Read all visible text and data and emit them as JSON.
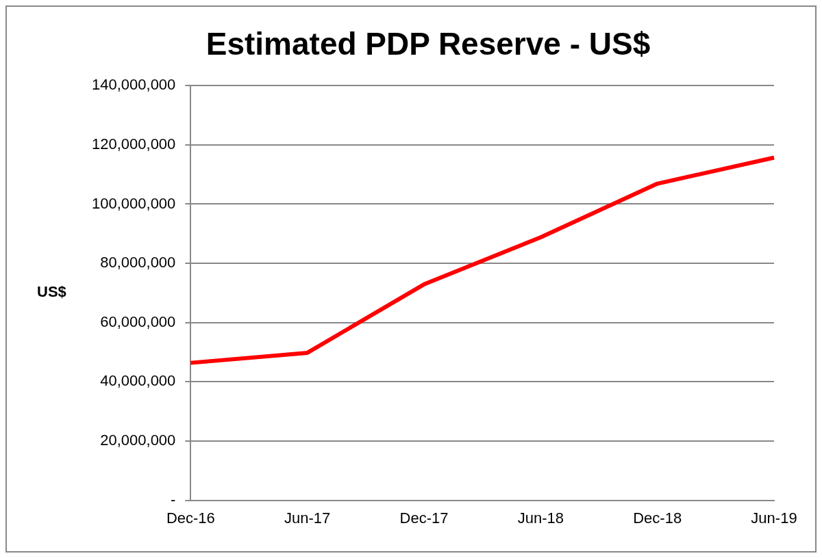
{
  "chart_data": {
    "type": "line",
    "title": "Estimated PDP Reserve - US$",
    "ylabel": "US$",
    "categories": [
      "Dec-16",
      "Jun-17",
      "Dec-17",
      "Jun-18",
      "Dec-18",
      "Jun-19"
    ],
    "series": [
      {
        "color": "#ff0000",
        "values": [
          46400000,
          49800000,
          72900000,
          88800000,
          106900000,
          115700000
        ]
      }
    ],
    "ylim": [
      0,
      140000000
    ],
    "yticks": [
      {
        "value": 0,
        "label": "-"
      },
      {
        "value": 20000000,
        "label": "20,000,000"
      },
      {
        "value": 40000000,
        "label": "40,000,000"
      },
      {
        "value": 60000000,
        "label": "60,000,000"
      },
      {
        "value": 80000000,
        "label": "80,000,000"
      },
      {
        "value": 100000000,
        "label": "100,000,000"
      },
      {
        "value": 120000000,
        "label": "120,000,000"
      },
      {
        "value": 140000000,
        "label": "140,000,000"
      }
    ],
    "grid": "y",
    "legend": false,
    "marker": "none",
    "line_style": "solid"
  }
}
